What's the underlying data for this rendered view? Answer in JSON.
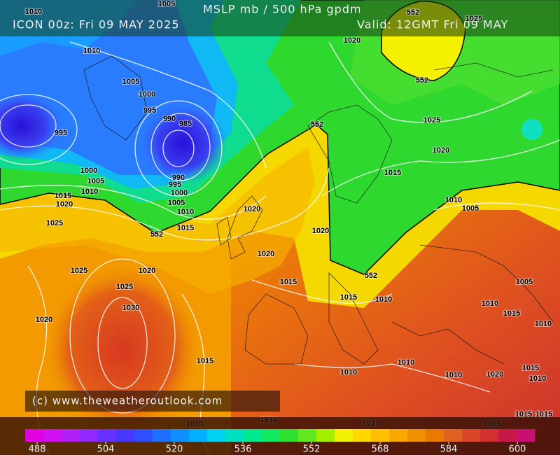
{
  "header": {
    "title": "MSLP mb / 500 hPa gpdm",
    "model_run": "ICON 00z: Fri 09 MAY 2025",
    "valid": "Valid: 12GMT Fri 09 MAY"
  },
  "watermark": "(c) www.theweatheroutlook.com",
  "isobar_labels": [
    1010,
    1005,
    1010,
    1020,
    1025,
    552,
    552,
    1005,
    1000,
    995,
    990,
    985,
    995,
    552,
    1025,
    1020,
    1015,
    1000,
    1005,
    1010,
    990,
    995,
    1000,
    1005,
    1010,
    1015,
    1020,
    1025,
    1015,
    552,
    1020,
    1010,
    1005,
    1020,
    1020,
    1025,
    1020,
    552,
    1015,
    1025,
    1005,
    1015,
    1010,
    1010,
    1015,
    1030,
    1010,
    1020,
    1015,
    1010,
    1010,
    1015,
    1020,
    1010,
    1010,
    1010,
    1010,
    1010,
    1005,
    1015,
    1015
  ],
  "colorbar": {
    "range": [
      488,
      600
    ],
    "ticks": [
      488,
      504,
      520,
      536,
      552,
      568,
      584,
      600
    ],
    "colors": [
      "#e000e0",
      "#d010f0",
      "#b020f8",
      "#9028ff",
      "#6a30ff",
      "#4838ff",
      "#3050ff",
      "#2070ff",
      "#1090ff",
      "#00b0ff",
      "#00d0f0",
      "#00e0c0",
      "#00e890",
      "#10e860",
      "#30e030",
      "#60e820",
      "#a0f000",
      "#f0f000",
      "#ffd800",
      "#ffc000",
      "#f8a800",
      "#f09000",
      "#e87800",
      "#e06020",
      "#d84828",
      "#d03030",
      "#c81848",
      "#c81070"
    ]
  }
}
